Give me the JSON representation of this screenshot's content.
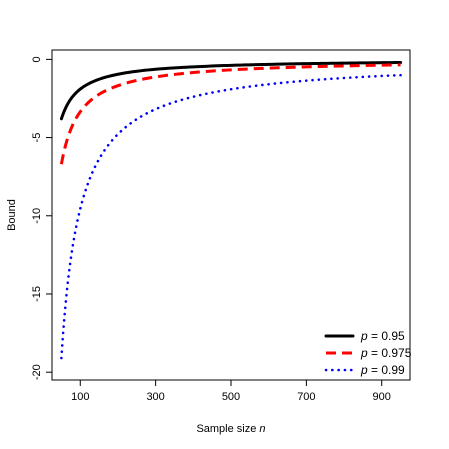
{
  "chart_data": {
    "type": "line",
    "title": "",
    "xlabel": "Sample size",
    "xlabel_var": "n",
    "ylabel": "Bound",
    "xlim": [
      25,
      975
    ],
    "ylim": [
      -20.5,
      0.6
    ],
    "x_ticks": [
      100,
      300,
      500,
      700,
      900
    ],
    "y_ticks": [
      0,
      -5,
      -10,
      -15,
      -20
    ],
    "grid": false,
    "legend_position": "bottom-right",
    "series": [
      {
        "name": "p = 0.95",
        "name_var": "p",
        "name_rest": " = 0.95",
        "color": "#000000",
        "line_style": "solid",
        "x": [
          50,
          60,
          75,
          100,
          150,
          200,
          300,
          400,
          500,
          600,
          700,
          800,
          900,
          950
        ],
        "y": [
          -3.8,
          -3.17,
          -2.53,
          -1.9,
          -1.27,
          -0.95,
          -0.63,
          -0.48,
          -0.38,
          -0.32,
          -0.27,
          -0.24,
          -0.21,
          -0.2
        ]
      },
      {
        "name": "p = 0.975",
        "name_var": "p",
        "name_rest": " = 0.975",
        "color": "#ff0000",
        "line_style": "dashed",
        "x": [
          50,
          60,
          75,
          100,
          150,
          200,
          300,
          400,
          500,
          600,
          700,
          800,
          900,
          950
        ],
        "y": [
          -6.7,
          -5.58,
          -4.47,
          -3.35,
          -2.23,
          -1.68,
          -1.12,
          -0.84,
          -0.67,
          -0.56,
          -0.48,
          -0.42,
          -0.37,
          -0.35
        ]
      },
      {
        "name": "p = 0.99",
        "name_var": "p",
        "name_rest": " = 0.99",
        "color": "#0000ff",
        "line_style": "dotted",
        "x": [
          50,
          60,
          75,
          100,
          150,
          200,
          300,
          400,
          500,
          600,
          700,
          800,
          900,
          950
        ],
        "y": [
          -19.1,
          -15.92,
          -12.73,
          -9.55,
          -6.37,
          -4.78,
          -3.18,
          -2.39,
          -1.91,
          -1.59,
          -1.36,
          -1.19,
          -1.06,
          -1.01
        ]
      }
    ]
  }
}
